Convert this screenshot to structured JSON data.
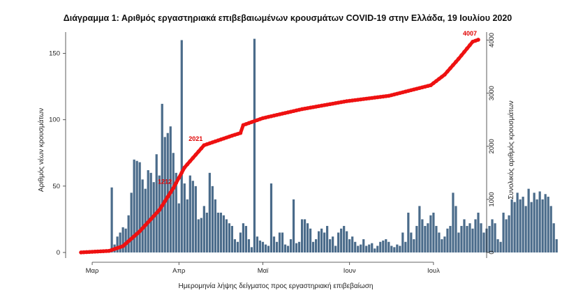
{
  "chart_data": {
    "type": "bar",
    "title": "Διάγραμμα 1: Αριθμός εργαστηριακά επιβεβαιωμένων κρουσμάτων COVID-19 στην Ελλάδα, 19 Ιουλίου 2020",
    "xlabel": "Ημερομηνία λήψης δείγματος προς εργαστηριακή επιβεβαίωση",
    "ylabel_left": "Αριθμός νέων κρουσμάτων",
    "ylabel_right": "Συνολικός αριθμός κρουσμάτων",
    "ylim_left": [
      0,
      165
    ],
    "ylim_right": [
      0,
      4125
    ],
    "yticks_left": [
      0,
      50,
      100,
      150
    ],
    "yticks_right": [
      0,
      1000,
      2000,
      3000,
      4000
    ],
    "x_range": [
      "2020-02-24",
      "2020-07-17"
    ],
    "x_ticks": [
      {
        "date": "2020-03-01",
        "label": "Μαρ"
      },
      {
        "date": "2020-04-01",
        "label": "Απρ"
      },
      {
        "date": "2020-05-01",
        "label": "Μαϊ"
      },
      {
        "date": "2020-06-01",
        "label": "Ιουν"
      },
      {
        "date": "2020-07-01",
        "label": "Ιουλ"
      }
    ],
    "grid": false,
    "series": [
      {
        "kind": "bar",
        "axis": "left",
        "color": "#4a6b8a",
        "start_date": "2020-02-26",
        "values": [
          1,
          1,
          1,
          1,
          1,
          1,
          2,
          1,
          1,
          2,
          2,
          49,
          6,
          12,
          15,
          19,
          18,
          28,
          45,
          70,
          69,
          68,
          55,
          48,
          62,
          60,
          53,
          74,
          58,
          112,
          87,
          90,
          95,
          75,
          60,
          37,
          160,
          52,
          40,
          58,
          54,
          50,
          25,
          26,
          35,
          30,
          60,
          50,
          40,
          30,
          30,
          28,
          25,
          22,
          20,
          10,
          8,
          15,
          22,
          20,
          10,
          4,
          161,
          12,
          9,
          8,
          6,
          5,
          52,
          12,
          8,
          15,
          15,
          6,
          5,
          10,
          40,
          7,
          8,
          25,
          25,
          22,
          18,
          8,
          10,
          16,
          18,
          15,
          20,
          10,
          12,
          5,
          15,
          18,
          20,
          16,
          10,
          12,
          8,
          5,
          6,
          10,
          5,
          6,
          7,
          3,
          5,
          8,
          9,
          10,
          8,
          5,
          4,
          6,
          5,
          15,
          8,
          30,
          15,
          10,
          20,
          35,
          25,
          20,
          22,
          28,
          30,
          20,
          15,
          10,
          12,
          18,
          20,
          45,
          35,
          15,
          20,
          25,
          20,
          22,
          18,
          25,
          30,
          22,
          15,
          18,
          20,
          25,
          22,
          10,
          8,
          30,
          25,
          28,
          40,
          38,
          45,
          40,
          42,
          35,
          48,
          38,
          45,
          40,
          46,
          40,
          44,
          42,
          35,
          22,
          10
        ]
      },
      {
        "kind": "line",
        "axis": "right",
        "color": "#ee1111",
        "points": [
          {
            "date": "2020-02-26",
            "value": 1
          },
          {
            "date": "2020-03-07",
            "value": 30
          },
          {
            "date": "2020-03-12",
            "value": 120
          },
          {
            "date": "2020-03-18",
            "value": 400
          },
          {
            "date": "2020-03-25",
            "value": 800
          },
          {
            "date": "2020-03-30",
            "value": 1212
          },
          {
            "date": "2020-04-03",
            "value": 1600
          },
          {
            "date": "2020-04-10",
            "value": 2021
          },
          {
            "date": "2020-04-20",
            "value": 2200
          },
          {
            "date": "2020-04-23",
            "value": 2250
          },
          {
            "date": "2020-04-24",
            "value": 2400
          },
          {
            "date": "2020-05-01",
            "value": 2530
          },
          {
            "date": "2020-05-15",
            "value": 2700
          },
          {
            "date": "2020-05-31",
            "value": 2850
          },
          {
            "date": "2020-06-15",
            "value": 2950
          },
          {
            "date": "2020-06-30",
            "value": 3150
          },
          {
            "date": "2020-07-05",
            "value": 3350
          },
          {
            "date": "2020-07-10",
            "value": 3650
          },
          {
            "date": "2020-07-15",
            "value": 3970
          },
          {
            "date": "2020-07-17",
            "value": 4007
          }
        ]
      }
    ],
    "annotations": [
      {
        "date": "2020-03-30",
        "value": 1212,
        "text": "1212"
      },
      {
        "date": "2020-04-10",
        "value": 2021,
        "text": "2021"
      },
      {
        "date": "2020-07-17",
        "value": 4007,
        "text": "4007"
      }
    ]
  }
}
